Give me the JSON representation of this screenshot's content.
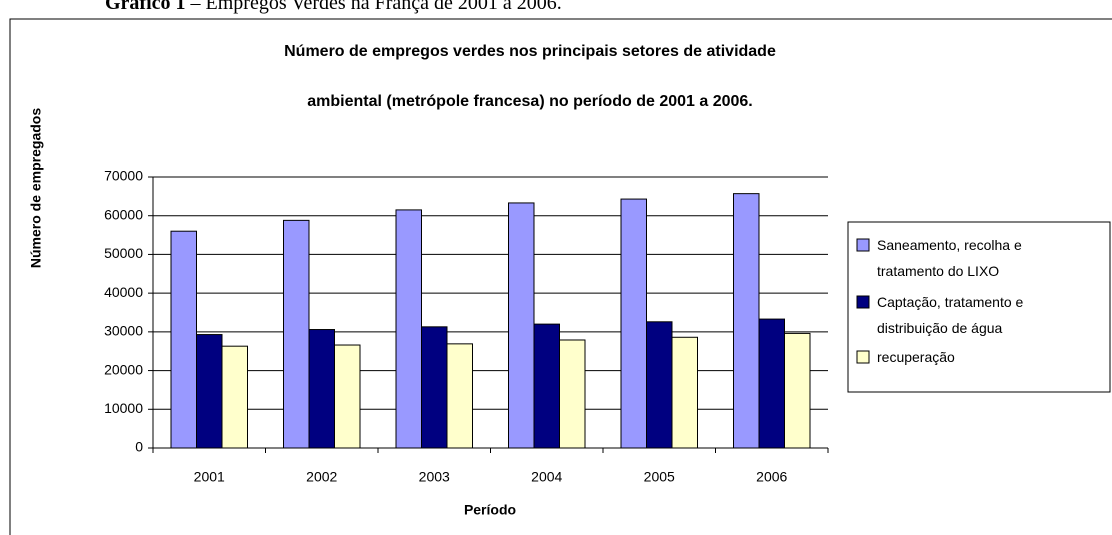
{
  "caption_label": "Gráfico 1",
  "caption_text": " – Empregos Verdes na França de 2001 a 2006.",
  "chart_data": {
    "type": "bar",
    "title_line1": "Número de empregos verdes nos principais setores de atividade",
    "title_line2": "ambiental (metrópole francesa) no período de 2001 a 2006.",
    "y_label": "Número de empregados",
    "x_label": "Período",
    "categories": [
      "2001",
      "2002",
      "2003",
      "2004",
      "2005",
      "2006"
    ],
    "series": [
      {
        "name": "Saneamento, recolha e tratamento do LIXO",
        "color": "#9999ff",
        "values": [
          56000,
          58800,
          61500,
          63300,
          64300,
          65700
        ]
      },
      {
        "name": "Captação, tratamento e distribuição de água",
        "color": "#000080",
        "values": [
          29300,
          30600,
          31300,
          32000,
          32600,
          33300
        ]
      },
      {
        "name": "recuperação",
        "color": "#ffffcc",
        "values": [
          26300,
          26600,
          26900,
          27900,
          28600,
          29600
        ]
      }
    ],
    "ylim": [
      0,
      70000
    ],
    "yticks": [
      0,
      10000,
      20000,
      30000,
      40000,
      50000,
      60000,
      70000
    ],
    "grid": true,
    "legend": "right"
  }
}
